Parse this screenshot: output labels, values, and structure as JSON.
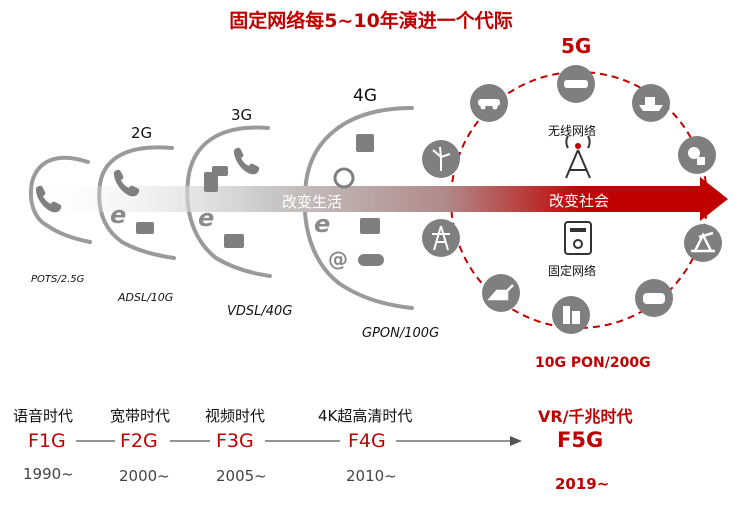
{
  "title": "固定网络每5~10年演进一个代际",
  "generations": [
    {
      "label": "",
      "tech": "POTS/2.5G"
    },
    {
      "label": "2G",
      "tech": "ADSL/10G"
    },
    {
      "label": "3G",
      "tech": "VDSL/40G"
    },
    {
      "label": "4G",
      "tech": "GPON/100G"
    },
    {
      "label": "5G",
      "tech": "10G PON/200G"
    }
  ],
  "arrow": {
    "left_text": "改变生活",
    "right_text": "改变社会"
  },
  "ring": {
    "wireless_label": "无线网络",
    "fixed_label": "固定网络"
  },
  "eras": [
    {
      "name": "语音时代",
      "code": "F1G",
      "year": "1990~"
    },
    {
      "name": "宽带时代",
      "code": "F2G",
      "year": "2000~"
    },
    {
      "name": "视频时代",
      "code": "F3G",
      "year": "2005~"
    },
    {
      "name": "4K超高清时代",
      "code": "F4G",
      "year": "2010~"
    },
    {
      "name": "VR/千兆时代",
      "code": "F5G",
      "year": "2019~"
    }
  ],
  "colors": {
    "accent": "#c00000",
    "icon_grey": "#7f7f7f",
    "curve_grey": "#9a9a9a"
  },
  "ring_icons": [
    "car-icon",
    "vr-glasses-icon",
    "ship-icon",
    "robot-icon",
    "oil-pump-icon",
    "vr-headset-icon",
    "building-icon",
    "excavator-icon",
    "power-tower-icon",
    "wind-farm-icon"
  ]
}
